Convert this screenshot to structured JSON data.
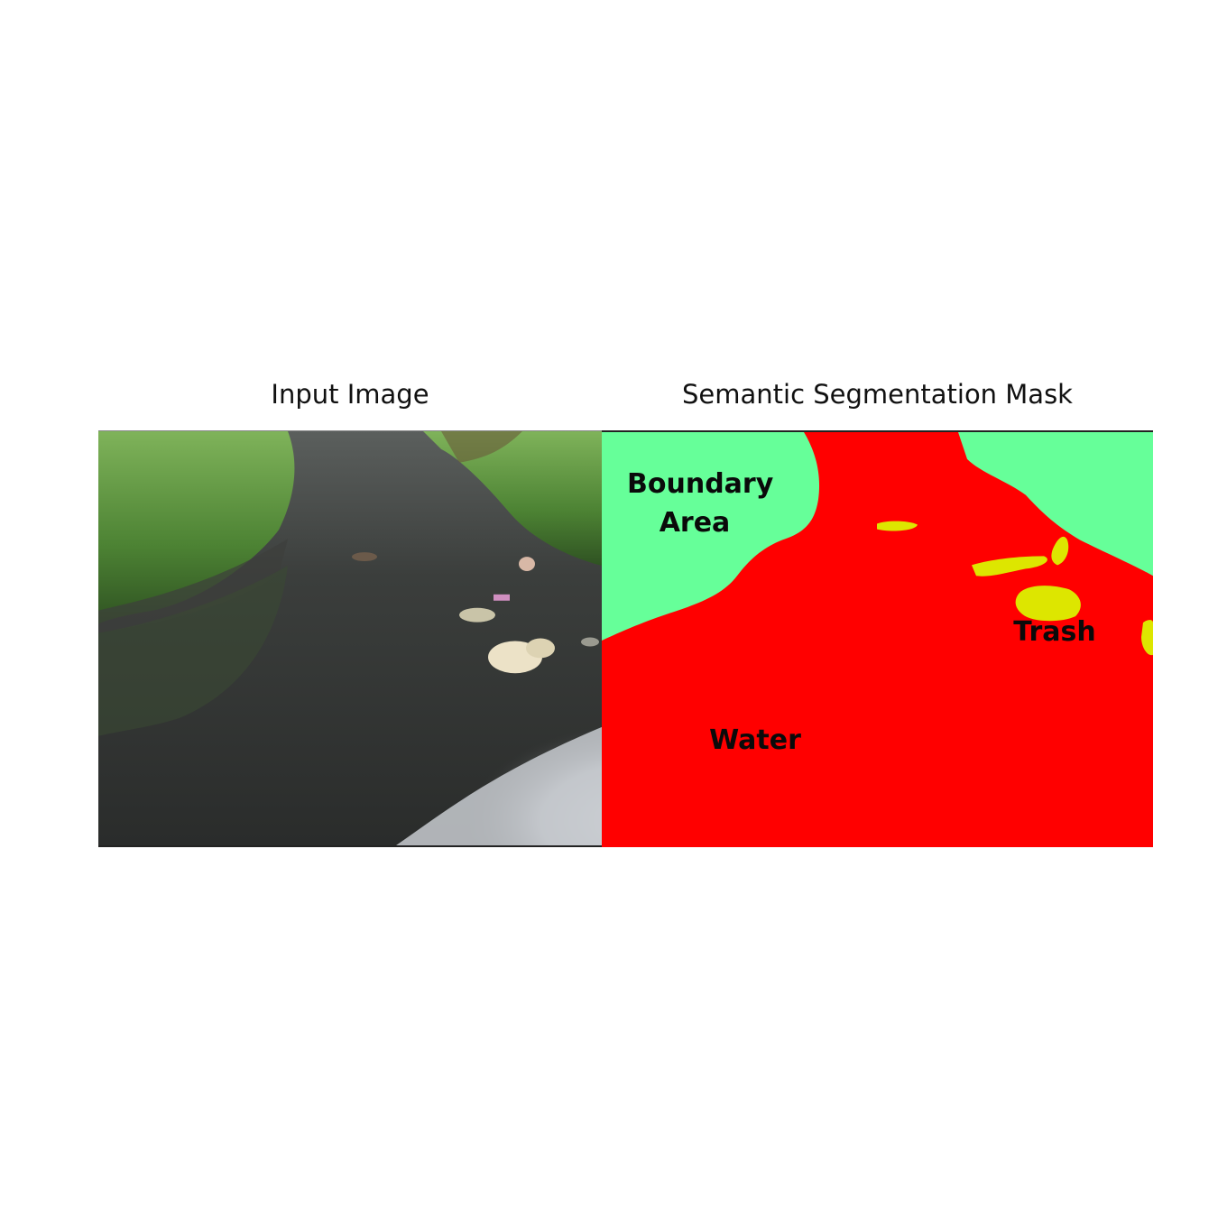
{
  "titles": {
    "left": "Input Image",
    "right": "Semantic Segmentation Mask"
  },
  "mask_labels": {
    "boundary_line1": "Boundary",
    "boundary_line2": "Area",
    "water": "Water",
    "trash": "Trash"
  },
  "mask_colors": {
    "water": "#ff0000",
    "boundary": "#66ff99",
    "trash": "#dde600"
  },
  "photo_colors": {
    "grass": "#4f8a35",
    "water": "#2e302f",
    "sky_reflection": "#c9ccd1",
    "trash_bag": "#e8dcc0"
  }
}
